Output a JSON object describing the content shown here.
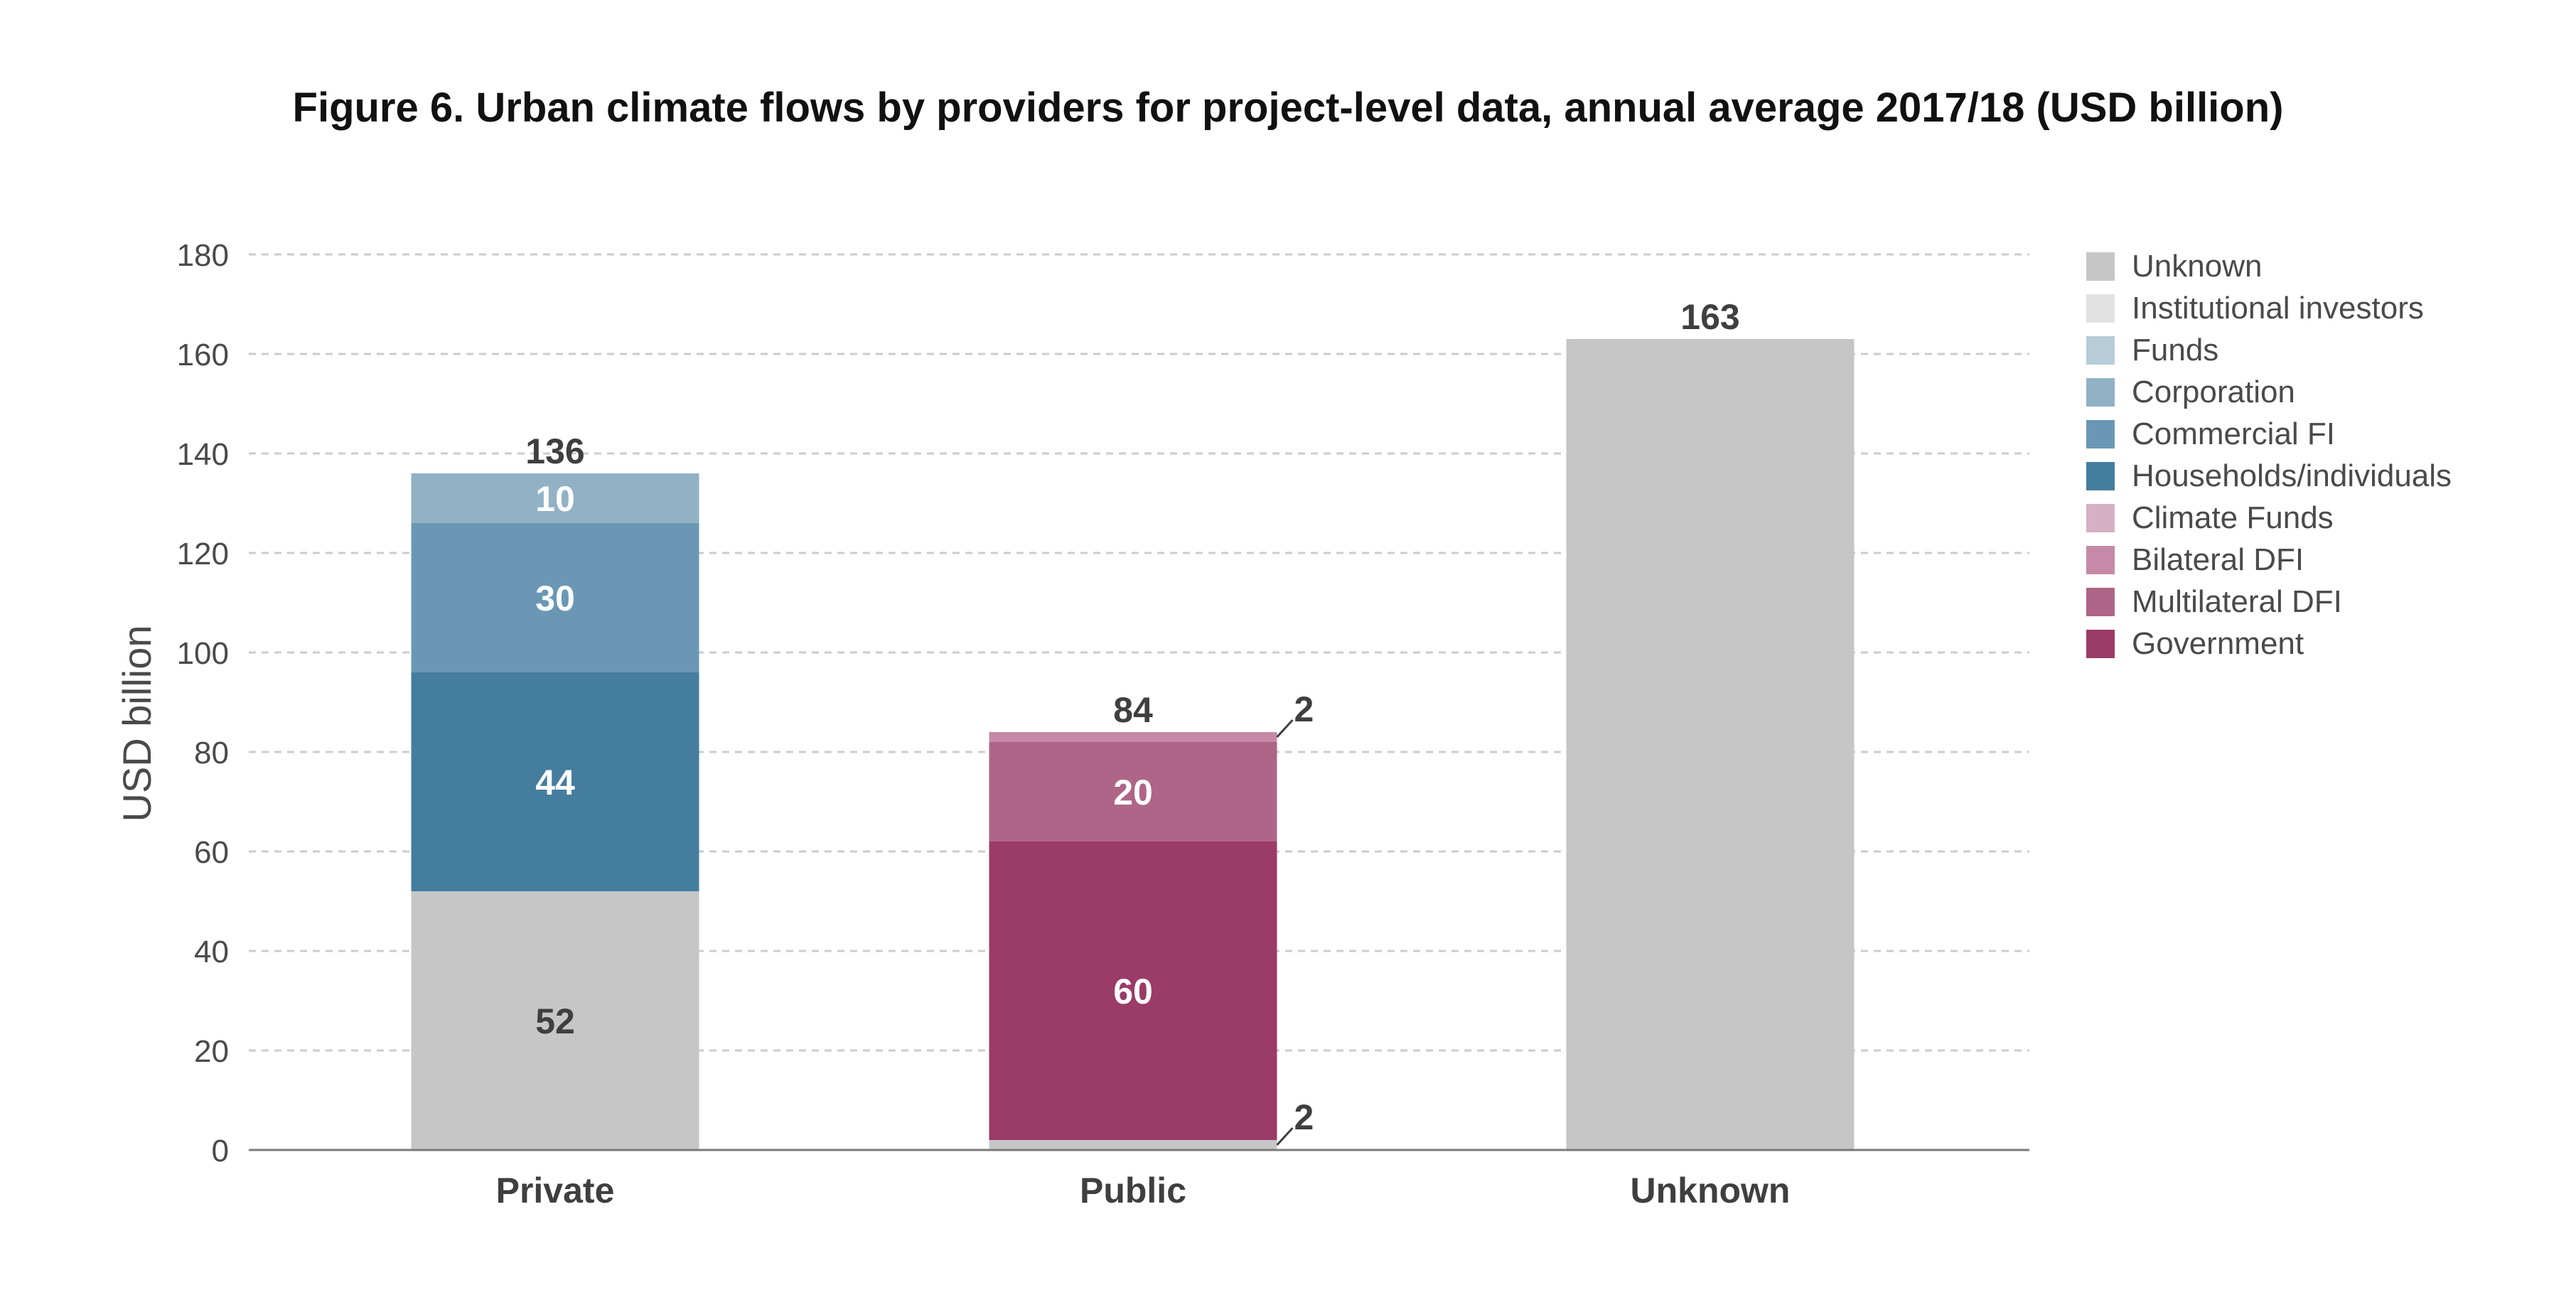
{
  "chart_data": {
    "type": "bar",
    "stacked": true,
    "title": "Figure 6. Urban climate flows by providers for project-level data, annual average 2017/18 (USD billion)",
    "ylabel": "USD billion",
    "xlabel": "",
    "ylim": [
      0,
      180
    ],
    "yticks": [
      "0",
      "20",
      "40",
      "60",
      "80",
      "100",
      "120",
      "140",
      "160",
      "180"
    ],
    "grid": true,
    "legend_position": "right",
    "categories": [
      "Private",
      "Public",
      "Unknown"
    ],
    "series": [
      {
        "name": "Unknown",
        "color": "#c6c6c6",
        "values": [
          52,
          2,
          163
        ],
        "labels": [
          "52",
          "2",
          ""
        ]
      },
      {
        "name": "Institutional investors",
        "color": "#e2e2e2",
        "values": [
          0,
          0,
          0
        ],
        "labels": [
          "",
          "",
          ""
        ]
      },
      {
        "name": "Funds",
        "color": "#b6cdd9",
        "values": [
          0,
          0,
          0
        ],
        "labels": [
          "",
          "",
          ""
        ]
      },
      {
        "name": "Corporation",
        "color": "#92b1c5",
        "values": [
          10,
          0,
          0
        ],
        "labels": [
          "10",
          "",
          ""
        ]
      },
      {
        "name": "Commercial FI",
        "color": "#6a98b4",
        "values": [
          30,
          0,
          0
        ],
        "labels": [
          "30",
          "",
          ""
        ]
      },
      {
        "name": "Households/individuals",
        "color": "#457d9f",
        "values": [
          44,
          0,
          0
        ],
        "labels": [
          "44",
          "",
          ""
        ]
      },
      {
        "name": "Climate Funds",
        "color": "#d6b1c5",
        "values": [
          0,
          0,
          0
        ],
        "labels": [
          "",
          "",
          ""
        ]
      },
      {
        "name": "Bilateral DFI",
        "color": "#c68aa8",
        "values": [
          0,
          2,
          0
        ],
        "labels": [
          "",
          "2",
          ""
        ]
      },
      {
        "name": "Multilateral DFI",
        "color": "#ae6587",
        "values": [
          0,
          20,
          0
        ],
        "labels": [
          "",
          "20",
          ""
        ]
      },
      {
        "name": "Government",
        "color": "#9b3b68",
        "values": [
          0,
          60,
          0
        ],
        "labels": [
          "",
          "60",
          ""
        ]
      }
    ],
    "stacks": [
      {
        "category": "Private",
        "order": [
          "Unknown",
          "Households/individuals",
          "Commercial FI",
          "Corporation"
        ],
        "total": "136"
      },
      {
        "category": "Public",
        "order": [
          "Unknown",
          "Government",
          "Multilateral DFI",
          "Bilateral DFI"
        ],
        "total": "84"
      },
      {
        "category": "Unknown",
        "order": [
          "Unknown"
        ],
        "total": "163"
      }
    ]
  }
}
